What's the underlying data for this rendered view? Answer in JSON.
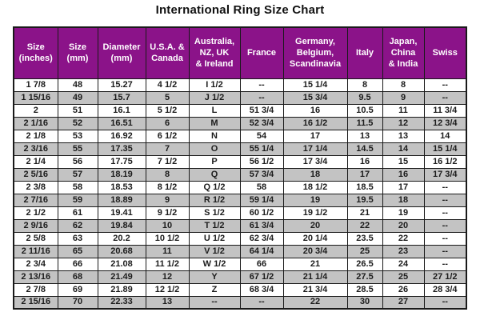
{
  "title": "International Ring Size Chart",
  "colors": {
    "header_bg": "#8b1389",
    "header_text": "#ffffff",
    "row_bg": "#ffffff",
    "row_alt_bg": "#c3c3c3",
    "border": "#1a1a1a",
    "text": "#1c1c1c"
  },
  "chart_data": {
    "type": "table",
    "title": "International Ring Size Chart",
    "layout_hints": {
      "header_style": "purple background, white bold text",
      "zebra_striping": "even rows gray",
      "grid": "on"
    },
    "columns": [
      "Size\n(inches)",
      "Size\n(mm)",
      "Diameter\n(mm)",
      "U.S.A. &\nCanada",
      "Australia,\nNZ, UK\n& Ireland",
      "France",
      "Germany,\nBelgium,\nScandinavia",
      "Italy",
      "Japan,\nChina\n& India",
      "Swiss"
    ],
    "rows": [
      [
        "1 7/8",
        "48",
        "15.27",
        "4 1/2",
        "I 1/2",
        "--",
        "15 1/4",
        "8",
        "8",
        "--"
      ],
      [
        "1 15/16",
        "49",
        "15.7",
        "5",
        "J 1/2",
        "--",
        "15 3/4",
        "9.5",
        "9",
        "--"
      ],
      [
        "2",
        "51",
        "16.1",
        "5 1/2",
        "L",
        "51 3/4",
        "16",
        "10.5",
        "11",
        "11 3/4"
      ],
      [
        "2 1/16",
        "52",
        "16.51",
        "6",
        "M",
        "52 3/4",
        "16 1/2",
        "11.5",
        "12",
        "12 3/4"
      ],
      [
        "2 1/8",
        "53",
        "16.92",
        "6 1/2",
        "N",
        "54",
        "17",
        "13",
        "13",
        "14"
      ],
      [
        "2 3/16",
        "55",
        "17.35",
        "7",
        "O",
        "55 1/4",
        "17 1/4",
        "14.5",
        "14",
        "15 1/4"
      ],
      [
        "2 1/4",
        "56",
        "17.75",
        "7 1/2",
        "P",
        "56 1/2",
        "17 3/4",
        "16",
        "15",
        "16 1/2"
      ],
      [
        "2 5/16",
        "57",
        "18.19",
        "8",
        "Q",
        "57 3/4",
        "18",
        "17",
        "16",
        "17 3/4"
      ],
      [
        "2 3/8",
        "58",
        "18.53",
        "8 1/2",
        "Q 1/2",
        "58",
        "18 1/2",
        "18.5",
        "17",
        "--"
      ],
      [
        "2 7/16",
        "59",
        "18.89",
        "9",
        "R 1/2",
        "59 1/4",
        "19",
        "19.5",
        "18",
        "--"
      ],
      [
        "2 1/2",
        "61",
        "19.41",
        "9 1/2",
        "S 1/2",
        "60 1/2",
        "19 1/2",
        "21",
        "19",
        "--"
      ],
      [
        "2 9/16",
        "62",
        "19.84",
        "10",
        "T 1/2",
        "61 3/4",
        "20",
        "22",
        "20",
        "--"
      ],
      [
        "2 5/8",
        "63",
        "20.2",
        "10 1/2",
        "U 1/2",
        "62 3/4",
        "20 1/4",
        "23.5",
        "22",
        "--"
      ],
      [
        "2 11/16",
        "65",
        "20.68",
        "11",
        "V 1/2",
        "64 1/4",
        "20 3/4",
        "25",
        "23",
        "--"
      ],
      [
        "2 3/4",
        "66",
        "21.08",
        "11 1/2",
        "W 1/2",
        "66",
        "21",
        "26.5",
        "24",
        "--"
      ],
      [
        "2 13/16",
        "68",
        "21.49",
        "12",
        "Y",
        "67 1/2",
        "21 1/4",
        "27.5",
        "25",
        "27 1/2"
      ],
      [
        "2 7/8",
        "69",
        "21.89",
        "12 1/2",
        "Z",
        "68 3/4",
        "21 3/4",
        "28.5",
        "26",
        "28 3/4"
      ],
      [
        "2 15/16",
        "70",
        "22.33",
        "13",
        "--",
        "--",
        "22",
        "30",
        "27",
        "--"
      ]
    ]
  }
}
